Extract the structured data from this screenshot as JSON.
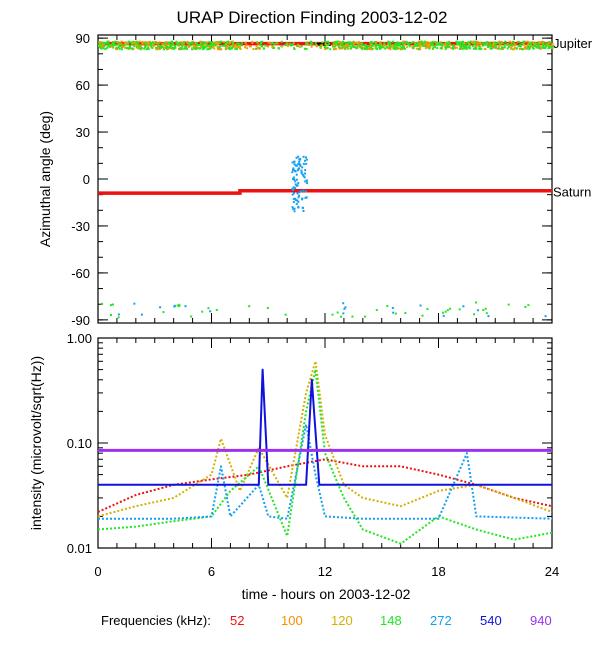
{
  "title": "URAP Direction Finding  2003-12-02",
  "xlabel": "time - hours on 2003-12-02",
  "legend_label": "Frequencies (kHz):",
  "colors": {
    "52": "#ee1111",
    "100": "#ff8c00",
    "120": "#d4b000",
    "148": "#22e622",
    "272": "#14a0f0",
    "540": "#1111dd",
    "940": "#9933ee",
    "black": "#000000"
  },
  "chart_data": [
    {
      "type": "scatter",
      "panel": "top",
      "ylabel": "Azimuthal angle (deg)",
      "xlim": [
        0,
        24
      ],
      "ylim": [
        -92,
        92
      ],
      "x_ticks": [
        0,
        6,
        12,
        18,
        24
      ],
      "y_ticks": [
        90,
        60,
        30,
        0,
        -30,
        -60,
        -90
      ],
      "annotations": [
        {
          "text": "Jupiter",
          "y": 87
        },
        {
          "text": "Saturn",
          "y": -8
        }
      ],
      "series": [
        {
          "name": "Saturn",
          "color": "#ee1111",
          "x": [
            0,
            7.5,
            7.5,
            24
          ],
          "y": [
            -9,
            -9,
            -7.5,
            -7.5
          ]
        },
        {
          "name": "Jupiter",
          "color": "#ee1111",
          "x": [
            0,
            24
          ],
          "y": [
            86.5,
            86.5
          ]
        },
        {
          "name": "Jupiter-dark",
          "color": "#000000",
          "x": [
            11.5,
            12.3
          ],
          "y": [
            86,
            86
          ]
        }
      ]
    },
    {
      "type": "scatter",
      "panel": "bottom",
      "ylabel": "intensity (microvolt/sqrt(Hz))",
      "xlim": [
        0,
        24
      ],
      "ylim": [
        0.01,
        1.0
      ],
      "yscale": "log",
      "x_ticks": [
        0,
        6,
        12,
        18,
        24
      ],
      "y_tick_labels": [
        "1.00",
        "0.10",
        "0.01"
      ],
      "series": [
        {
          "name": "52",
          "color": "#ee1111",
          "x": [
            0,
            2,
            4,
            6,
            8,
            10,
            12,
            14,
            16,
            18,
            20,
            22,
            24
          ],
          "y": [
            0.022,
            0.032,
            0.04,
            0.045,
            0.05,
            0.06,
            0.07,
            0.06,
            0.06,
            0.05,
            0.04,
            0.03,
            0.025
          ]
        },
        {
          "name": "120",
          "color": "#d4b000",
          "x": [
            0,
            2,
            4,
            6,
            6.5,
            7.5,
            8.5,
            10,
            11,
            11.5,
            12,
            13,
            14,
            16,
            18,
            20,
            22,
            24
          ],
          "y": [
            0.02,
            0.025,
            0.03,
            0.05,
            0.11,
            0.035,
            0.09,
            0.03,
            0.3,
            0.6,
            0.12,
            0.04,
            0.03,
            0.025,
            0.035,
            0.04,
            0.03,
            0.022
          ]
        },
        {
          "name": "148",
          "color": "#22e622",
          "x": [
            0,
            2,
            4,
            6,
            7,
            8.5,
            10,
            11,
            11.5,
            12,
            13,
            14,
            16,
            18,
            20,
            22,
            24
          ],
          "y": [
            0.015,
            0.016,
            0.018,
            0.02,
            0.035,
            0.06,
            0.013,
            0.2,
            0.5,
            0.08,
            0.03,
            0.015,
            0.011,
            0.02,
            0.015,
            0.012,
            0.014
          ]
        },
        {
          "name": "272",
          "color": "#14a0f0",
          "x": [
            0,
            4,
            6,
            6.5,
            7,
            8.5,
            9,
            10,
            11,
            11.5,
            12,
            14,
            18,
            19.5,
            20,
            24
          ],
          "y": [
            0.019,
            0.019,
            0.02,
            0.06,
            0.02,
            0.04,
            0.02,
            0.019,
            0.15,
            0.05,
            0.02,
            0.019,
            0.019,
            0.08,
            0.02,
            0.019
          ]
        },
        {
          "name": "540",
          "color": "#1111dd",
          "x": [
            0,
            8.5,
            8.7,
            9,
            11,
            11.3,
            11.7,
            24
          ],
          "y": [
            0.04,
            0.04,
            0.5,
            0.04,
            0.04,
            0.4,
            0.04,
            0.04
          ]
        },
        {
          "name": "940",
          "color": "#9933ee",
          "x": [
            0,
            24
          ],
          "y": [
            0.085,
            0.085
          ]
        }
      ]
    }
  ]
}
